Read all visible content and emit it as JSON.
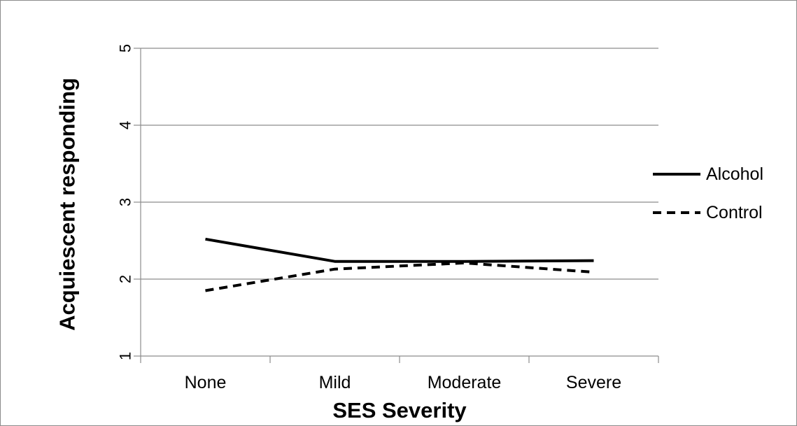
{
  "chart_data": {
    "type": "line",
    "title": "",
    "xlabel": "SES Severity",
    "ylabel": "Acquiescent responding",
    "categories": [
      "None",
      "Mild",
      "Moderate",
      "Severe"
    ],
    "ylim": [
      1,
      5
    ],
    "yticks": [
      "1",
      "2",
      "3",
      "4",
      "5"
    ],
    "grid": true,
    "legend_position": "right",
    "series": [
      {
        "name": "Alcohol",
        "values": [
          2.52,
          2.23,
          2.23,
          2.24
        ],
        "style": "solid",
        "color": "#000000"
      },
      {
        "name": "Control",
        "values": [
          1.85,
          2.13,
          2.21,
          2.09
        ],
        "style": "dashed",
        "color": "#000000"
      }
    ],
    "gridline_color": "#8c8c8c"
  }
}
